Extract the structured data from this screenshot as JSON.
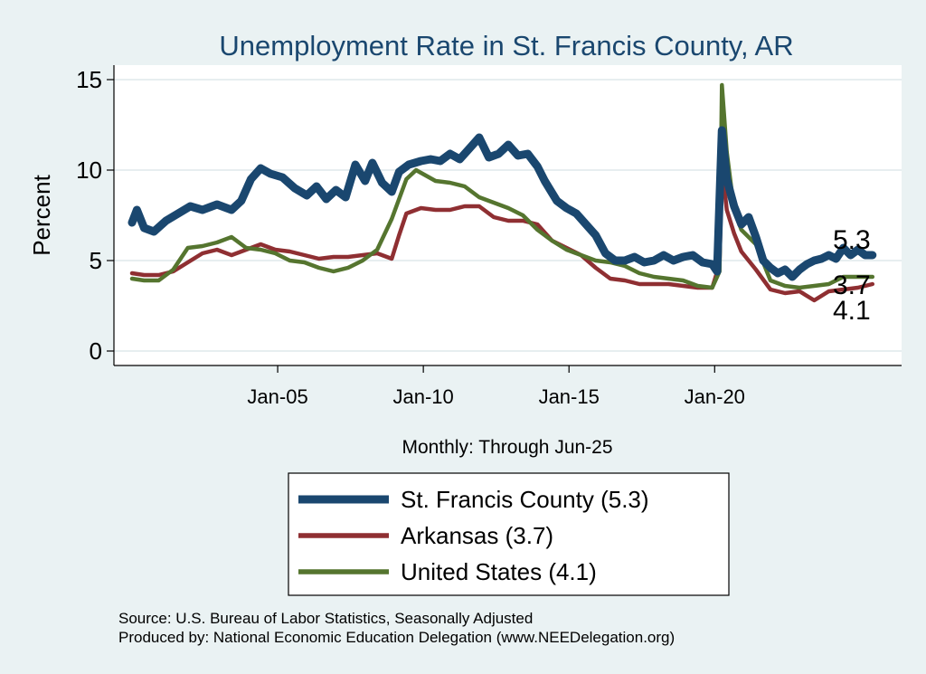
{
  "chart_data": {
    "type": "line",
    "title": "Unemployment Rate in St. Francis  County, AR",
    "ylabel": "Percent",
    "xlabel": "Monthly: Through Jun-25",
    "ylim": [
      0,
      15
    ],
    "yticks": [
      0,
      5,
      10,
      15
    ],
    "xlim": [
      "2000-01",
      "2026-06"
    ],
    "xticks": [
      {
        "value": "2005-01",
        "label": "Jan-05"
      },
      {
        "value": "2010-01",
        "label": "Jan-10"
      },
      {
        "value": "2015-01",
        "label": "Jan-15"
      },
      {
        "value": "2020-01",
        "label": "Jan-20"
      }
    ],
    "grid": true,
    "legend_position": "bottom",
    "series": [
      {
        "name": "St. Francis  County",
        "legend_label": "St. Francis  County (5.3)",
        "end_label": "5.3",
        "color": "#1a476f",
        "points": [
          [
            "2000-01",
            7.1
          ],
          [
            "2000-03",
            7.8
          ],
          [
            "2000-06",
            6.8
          ],
          [
            "2000-10",
            6.6
          ],
          [
            "2001-03",
            7.2
          ],
          [
            "2001-08",
            7.6
          ],
          [
            "2002-01",
            8.0
          ],
          [
            "2002-06",
            7.8
          ],
          [
            "2002-12",
            8.1
          ],
          [
            "2003-06",
            7.8
          ],
          [
            "2003-10",
            8.3
          ],
          [
            "2004-02",
            9.5
          ],
          [
            "2004-06",
            10.1
          ],
          [
            "2004-10",
            9.8
          ],
          [
            "2005-03",
            9.6
          ],
          [
            "2005-08",
            9.0
          ],
          [
            "2006-01",
            8.6
          ],
          [
            "2006-05",
            9.1
          ],
          [
            "2006-09",
            8.4
          ],
          [
            "2007-01",
            8.9
          ],
          [
            "2007-05",
            8.5
          ],
          [
            "2007-09",
            10.3
          ],
          [
            "2008-01",
            9.4
          ],
          [
            "2008-04",
            10.4
          ],
          [
            "2008-08",
            9.3
          ],
          [
            "2008-12",
            8.8
          ],
          [
            "2009-03",
            9.9
          ],
          [
            "2009-07",
            10.3
          ],
          [
            "2009-12",
            10.5
          ],
          [
            "2010-04",
            10.6
          ],
          [
            "2010-08",
            10.5
          ],
          [
            "2010-12",
            10.9
          ],
          [
            "2011-04",
            10.6
          ],
          [
            "2011-08",
            11.2
          ],
          [
            "2011-12",
            11.8
          ],
          [
            "2012-04",
            10.7
          ],
          [
            "2012-08",
            10.9
          ],
          [
            "2012-12",
            11.4
          ],
          [
            "2013-04",
            10.8
          ],
          [
            "2013-08",
            10.9
          ],
          [
            "2013-12",
            10.2
          ],
          [
            "2014-03",
            9.4
          ],
          [
            "2014-08",
            8.3
          ],
          [
            "2014-12",
            7.9
          ],
          [
            "2015-04",
            7.6
          ],
          [
            "2015-08",
            7.0
          ],
          [
            "2015-12",
            6.4
          ],
          [
            "2016-04",
            5.4
          ],
          [
            "2016-08",
            5.0
          ],
          [
            "2016-12",
            5.0
          ],
          [
            "2017-04",
            5.2
          ],
          [
            "2017-08",
            4.9
          ],
          [
            "2017-12",
            5.0
          ],
          [
            "2018-04",
            5.3
          ],
          [
            "2018-08",
            5.0
          ],
          [
            "2018-12",
            5.2
          ],
          [
            "2019-04",
            5.3
          ],
          [
            "2019-08",
            4.9
          ],
          [
            "2019-12",
            4.8
          ],
          [
            "2020-02",
            4.4
          ],
          [
            "2020-04",
            12.2
          ],
          [
            "2020-06",
            9.5
          ],
          [
            "2020-09",
            8.0
          ],
          [
            "2020-12",
            7.0
          ],
          [
            "2021-03",
            7.4
          ],
          [
            "2021-06",
            6.3
          ],
          [
            "2021-09",
            5.0
          ],
          [
            "2021-12",
            4.6
          ],
          [
            "2022-03",
            4.3
          ],
          [
            "2022-06",
            4.5
          ],
          [
            "2022-09",
            4.1
          ],
          [
            "2022-12",
            4.5
          ],
          [
            "2023-03",
            4.8
          ],
          [
            "2023-06",
            5.0
          ],
          [
            "2023-09",
            5.1
          ],
          [
            "2023-12",
            5.3
          ],
          [
            "2024-03",
            5.1
          ],
          [
            "2024-06",
            5.7
          ],
          [
            "2024-09",
            5.3
          ],
          [
            "2024-12",
            5.6
          ],
          [
            "2025-03",
            5.3
          ],
          [
            "2025-06",
            5.3
          ]
        ]
      },
      {
        "name": "Arkansas",
        "legend_label": "Arkansas (3.7)",
        "end_label": "3.7",
        "color": "#8f2f32",
        "points": [
          [
            "2000-01",
            4.3
          ],
          [
            "2000-06",
            4.2
          ],
          [
            "2000-12",
            4.2
          ],
          [
            "2001-06",
            4.4
          ],
          [
            "2001-12",
            4.9
          ],
          [
            "2002-06",
            5.4
          ],
          [
            "2002-12",
            5.6
          ],
          [
            "2003-06",
            5.3
          ],
          [
            "2003-12",
            5.6
          ],
          [
            "2004-06",
            5.9
          ],
          [
            "2004-12",
            5.6
          ],
          [
            "2005-06",
            5.5
          ],
          [
            "2005-12",
            5.3
          ],
          [
            "2006-06",
            5.1
          ],
          [
            "2006-12",
            5.2
          ],
          [
            "2007-06",
            5.2
          ],
          [
            "2007-12",
            5.3
          ],
          [
            "2008-06",
            5.4
          ],
          [
            "2008-12",
            5.1
          ],
          [
            "2009-03",
            6.4
          ],
          [
            "2009-06",
            7.6
          ],
          [
            "2009-12",
            7.9
          ],
          [
            "2010-06",
            7.8
          ],
          [
            "2010-12",
            7.8
          ],
          [
            "2011-06",
            8.0
          ],
          [
            "2011-12",
            8.0
          ],
          [
            "2012-06",
            7.4
          ],
          [
            "2012-12",
            7.2
          ],
          [
            "2013-06",
            7.2
          ],
          [
            "2013-12",
            7.0
          ],
          [
            "2014-06",
            6.1
          ],
          [
            "2014-12",
            5.7
          ],
          [
            "2015-06",
            5.3
          ],
          [
            "2015-12",
            4.6
          ],
          [
            "2016-06",
            4.0
          ],
          [
            "2016-12",
            3.9
          ],
          [
            "2017-06",
            3.7
          ],
          [
            "2017-12",
            3.7
          ],
          [
            "2018-06",
            3.7
          ],
          [
            "2018-12",
            3.6
          ],
          [
            "2019-06",
            3.5
          ],
          [
            "2019-12",
            3.5
          ],
          [
            "2020-03",
            4.8
          ],
          [
            "2020-04",
            10.2
          ],
          [
            "2020-06",
            7.8
          ],
          [
            "2020-09",
            6.5
          ],
          [
            "2020-12",
            5.5
          ],
          [
            "2021-06",
            4.5
          ],
          [
            "2021-12",
            3.4
          ],
          [
            "2022-06",
            3.2
          ],
          [
            "2022-12",
            3.3
          ],
          [
            "2023-06",
            2.8
          ],
          [
            "2023-12",
            3.3
          ],
          [
            "2024-06",
            3.4
          ],
          [
            "2024-12",
            3.5
          ],
          [
            "2025-06",
            3.7
          ]
        ]
      },
      {
        "name": "United States",
        "legend_label": "United States (4.1)",
        "end_label": "4.1",
        "color": "#55752f",
        "points": [
          [
            "2000-01",
            4.0
          ],
          [
            "2000-06",
            3.9
          ],
          [
            "2000-12",
            3.9
          ],
          [
            "2001-06",
            4.5
          ],
          [
            "2001-12",
            5.7
          ],
          [
            "2002-06",
            5.8
          ],
          [
            "2002-12",
            6.0
          ],
          [
            "2003-06",
            6.3
          ],
          [
            "2003-12",
            5.7
          ],
          [
            "2004-06",
            5.6
          ],
          [
            "2004-12",
            5.4
          ],
          [
            "2005-06",
            5.0
          ],
          [
            "2005-12",
            4.9
          ],
          [
            "2006-06",
            4.6
          ],
          [
            "2006-12",
            4.4
          ],
          [
            "2007-06",
            4.6
          ],
          [
            "2007-12",
            5.0
          ],
          [
            "2008-06",
            5.6
          ],
          [
            "2008-12",
            7.3
          ],
          [
            "2009-06",
            9.5
          ],
          [
            "2009-10",
            10.0
          ],
          [
            "2010-06",
            9.4
          ],
          [
            "2010-12",
            9.3
          ],
          [
            "2011-06",
            9.1
          ],
          [
            "2011-12",
            8.5
          ],
          [
            "2012-06",
            8.2
          ],
          [
            "2012-12",
            7.9
          ],
          [
            "2013-06",
            7.5
          ],
          [
            "2013-12",
            6.7
          ],
          [
            "2014-06",
            6.1
          ],
          [
            "2014-12",
            5.6
          ],
          [
            "2015-06",
            5.3
          ],
          [
            "2015-12",
            5.0
          ],
          [
            "2016-06",
            4.9
          ],
          [
            "2016-12",
            4.7
          ],
          [
            "2017-06",
            4.3
          ],
          [
            "2017-12",
            4.1
          ],
          [
            "2018-06",
            4.0
          ],
          [
            "2018-12",
            3.9
          ],
          [
            "2019-06",
            3.6
          ],
          [
            "2019-12",
            3.5
          ],
          [
            "2020-03",
            4.4
          ],
          [
            "2020-04",
            14.7
          ],
          [
            "2020-06",
            11.0
          ],
          [
            "2020-09",
            7.8
          ],
          [
            "2020-12",
            6.7
          ],
          [
            "2021-06",
            5.9
          ],
          [
            "2021-12",
            3.9
          ],
          [
            "2022-06",
            3.6
          ],
          [
            "2022-12",
            3.5
          ],
          [
            "2023-06",
            3.6
          ],
          [
            "2023-12",
            3.7
          ],
          [
            "2024-06",
            4.1
          ],
          [
            "2024-12",
            4.1
          ],
          [
            "2025-06",
            4.1
          ]
        ]
      }
    ],
    "source_lines": [
      "Source: U.S. Bureau of Labor Statistics, Seasonally Adjusted",
      "Produced by: National Economic Education Delegation (www.NEEDelegation.org)"
    ]
  }
}
